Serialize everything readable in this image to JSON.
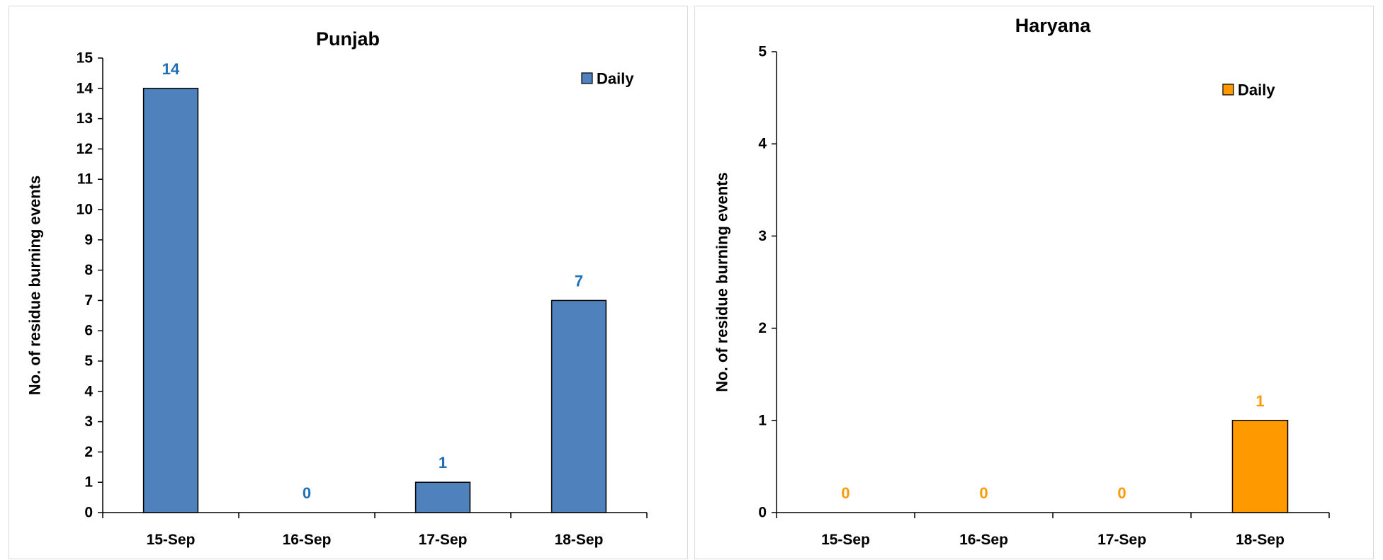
{
  "chart_data": [
    {
      "type": "bar",
      "title": "Punjab",
      "ylabel": "No. of residue burning events",
      "xlabel": "",
      "categories": [
        "15-Sep",
        "16-Sep",
        "17-Sep",
        "18-Sep"
      ],
      "series": [
        {
          "name": "Daily",
          "values": [
            14,
            0,
            1,
            7
          ]
        }
      ],
      "ylim": [
        0,
        15
      ],
      "yticks": [
        0,
        1,
        2,
        3,
        4,
        5,
        6,
        7,
        8,
        9,
        10,
        11,
        12,
        13,
        14,
        15
      ],
      "grid": false,
      "legend": "top-right",
      "colors": {
        "bar": "#4f81bd",
        "label": "#1f6fb5",
        "outline": "#000000"
      }
    },
    {
      "type": "bar",
      "title": "Haryana",
      "ylabel": "No. of residue burning events",
      "xlabel": "",
      "categories": [
        "15-Sep",
        "16-Sep",
        "17-Sep",
        "18-Sep"
      ],
      "series": [
        {
          "name": "Daily",
          "values": [
            0,
            0,
            0,
            1
          ]
        }
      ],
      "ylim": [
        0,
        5
      ],
      "yticks": [
        0,
        1,
        2,
        3,
        4,
        5
      ],
      "grid": false,
      "legend": "top-right",
      "colors": {
        "bar": "#ff9900",
        "label": "#ff9900",
        "outline": "#000000"
      }
    }
  ]
}
